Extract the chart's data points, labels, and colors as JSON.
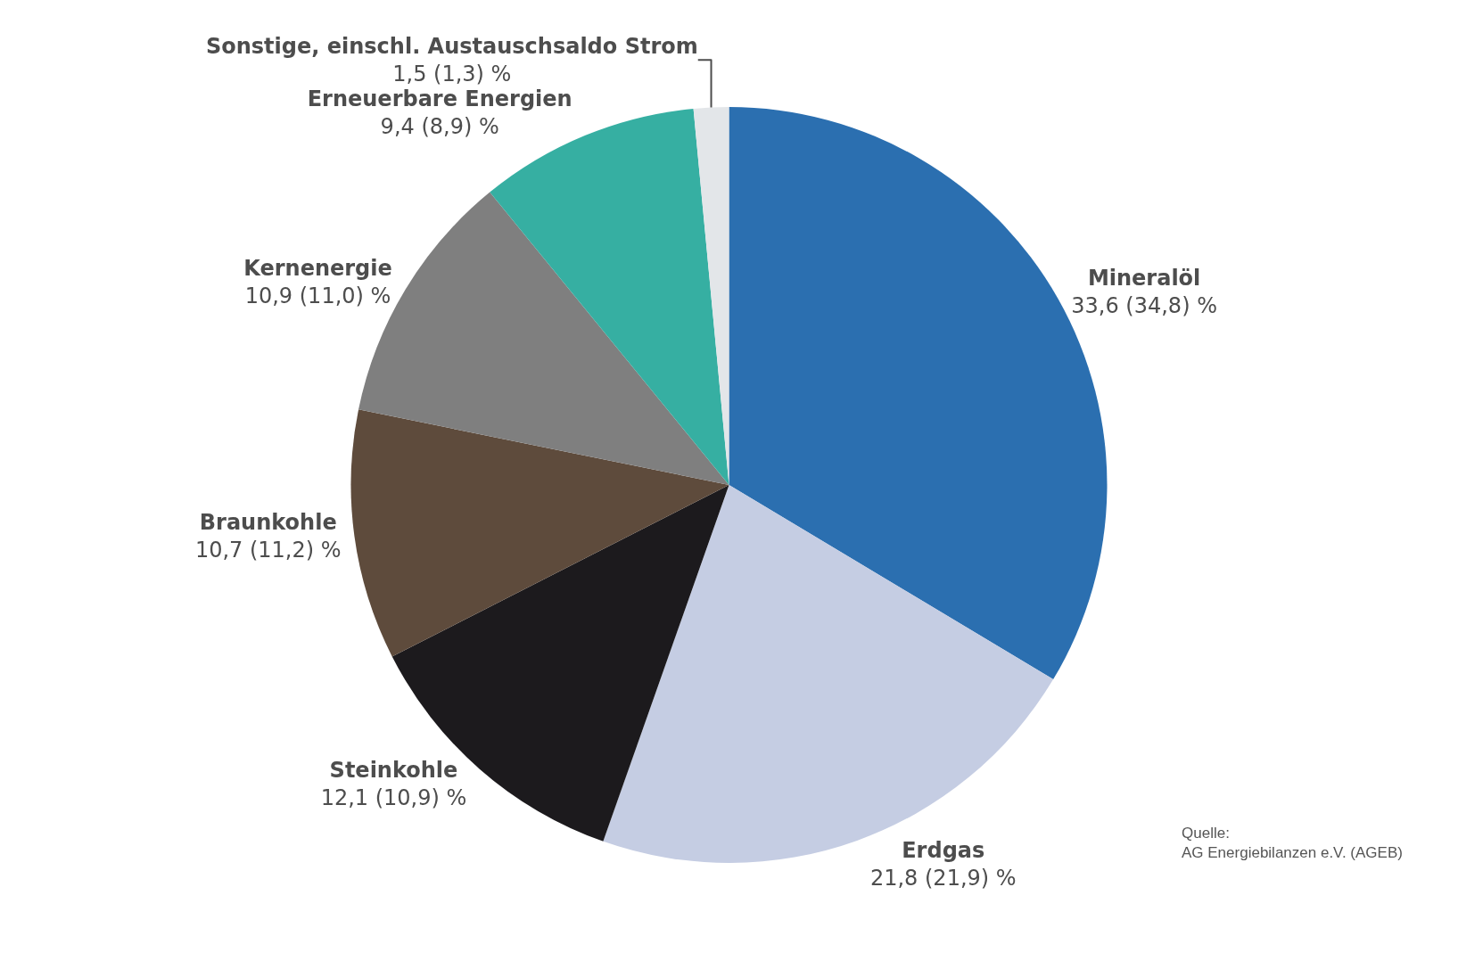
{
  "chart_data": {
    "type": "pie",
    "categories": [
      "Mineralöl",
      "Erdgas",
      "Steinkohle",
      "Braunkohle",
      "Kernenergie",
      "Erneuerbare Energien",
      "Sonstige, einschl. Austauschsaldo Strom"
    ],
    "values": [
      33.6,
      21.8,
      12.1,
      10.7,
      10.9,
      9.4,
      1.5
    ],
    "value_labels": [
      "33,6 (34,8) %",
      "21,8 (21,9) %",
      "12,1 (10,9) %",
      "10,7 (11,2) %",
      "10,9 (11,0) %",
      "9,4 (8,9) %",
      "1,5 (1,3) %"
    ],
    "colors": [
      "#2b6fb0",
      "#c5cde3",
      "#1c1a1d",
      "#5e4b3c",
      "#7f7f7f",
      "#36afa2",
      "#e3e6e9"
    ],
    "legend": false,
    "annotations": [
      "Quelle:\nAG Energiebilanzen e.V. (AGEB)"
    ]
  }
}
